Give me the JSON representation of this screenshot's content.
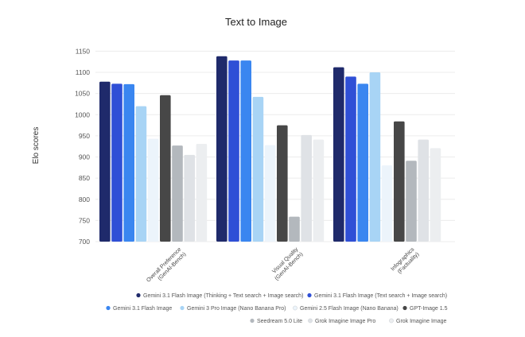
{
  "chart_data": {
    "type": "bar",
    "title": "Text to Image",
    "ylabel": "Elo scores",
    "xlabel": "",
    "ylim": [
      700,
      1160
    ],
    "yticks": [
      700,
      750,
      800,
      850,
      900,
      950,
      1000,
      1050,
      1100,
      1150
    ],
    "grid": true,
    "legend_position": "bottom",
    "categories": [
      [
        "Overall Preference",
        "(GenAI-Bench)"
      ],
      [
        "Visual Quality",
        "(GenAI-Bench)"
      ],
      [
        "Infographics",
        "(Factuality)"
      ]
    ],
    "series": [
      {
        "name": "Gemini 3.1 Flash Image (Thinking + Text search + Image search)",
        "color": "#1f2a6b",
        "values": [
          1078,
          1138,
          1112
        ]
      },
      {
        "name": "Gemini 3.1 Flash Image (Text search + Image search)",
        "color": "#2f4fd6",
        "values": [
          1073,
          1128,
          1090
        ]
      },
      {
        "name": "Gemini 3.1 Flash Image",
        "color": "#3a86f0",
        "values": [
          1072,
          1128,
          1073
        ]
      },
      {
        "name": "Gemini 3 Pro Image (Nano Banana Pro)",
        "color": "#a8d4f5",
        "values": [
          1020,
          1042,
          1100
        ]
      },
      {
        "name": "Gemini 2.5 Flash Image (Nano Banana)",
        "color": "#ecf4fb",
        "values": [
          943,
          928,
          880
        ]
      },
      {
        "name": "GPT-Image 1.5",
        "color": "#474747",
        "values": [
          1046,
          975,
          984
        ]
      },
      {
        "name": "Seedream 5.0 Lite",
        "color": "#b3b8bd",
        "values": [
          927,
          759,
          891
        ]
      },
      {
        "name": "Grok Imagine Image Pro",
        "color": "#dfe2e6",
        "values": [
          905,
          952,
          941
        ]
      },
      {
        "name": "Grok Imagine Image",
        "color": "#eceef0",
        "values": [
          931,
          941,
          921
        ]
      }
    ]
  }
}
